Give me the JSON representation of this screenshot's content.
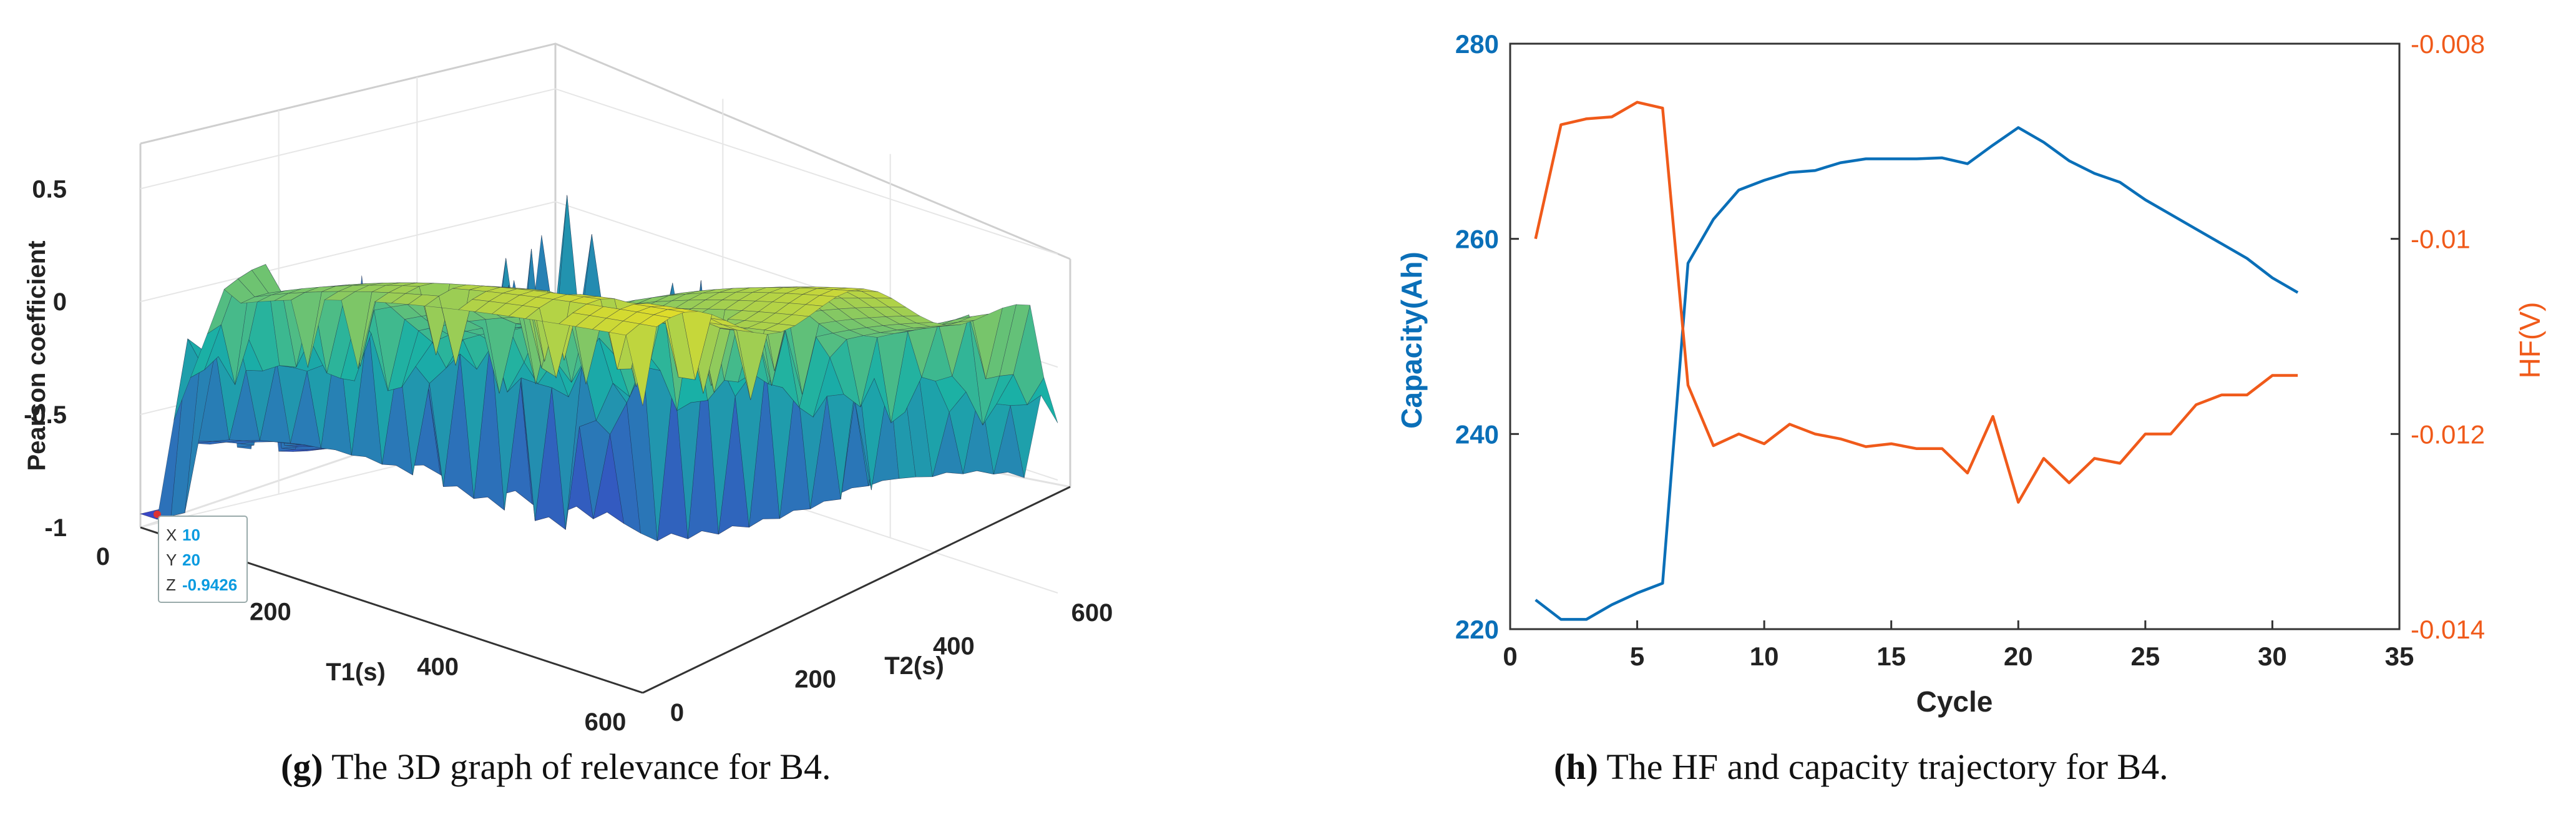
{
  "chart_data": [
    {
      "type": "surface3d",
      "xlabel": "T1(s)",
      "ylabel": "T2(s)",
      "zlabel": "Pearson coefficient",
      "x_ticks": [
        "0",
        "200",
        "400",
        "600"
      ],
      "y_ticks": [
        "0",
        "200",
        "400",
        "600"
      ],
      "z_ticks": [
        "-1",
        "-0.5",
        "0",
        "0.5"
      ],
      "xlim": [
        0,
        600
      ],
      "ylim": [
        0,
        600
      ],
      "zlim": [
        -1,
        0.7
      ],
      "datatip": {
        "x_label": "X",
        "x": "10",
        "y_label": "Y",
        "y": "20",
        "z_label": "Z",
        "z": "-0.9426"
      },
      "colors": {
        "low": "#3b3fc8",
        "mid": "#19b0a6",
        "high": "#f0e020"
      }
    },
    {
      "type": "line",
      "xlabel": "Cycle",
      "ylabel": "Capacity(Ah)",
      "y2label": "HF(V)",
      "xlim": [
        0,
        35
      ],
      "ylim": [
        220,
        280
      ],
      "y2lim": [
        -0.014,
        -0.008
      ],
      "x_ticks": [
        "0",
        "5",
        "10",
        "15",
        "20",
        "25",
        "30",
        "35"
      ],
      "y_ticks": [
        "220",
        "240",
        "260",
        "280"
      ],
      "y2_ticks": [
        "-0.014",
        "-0.012",
        "-0.01",
        "-0.008"
      ],
      "x": [
        1,
        2,
        3,
        4,
        5,
        6,
        7,
        8,
        9,
        10,
        11,
        12,
        13,
        14,
        15,
        16,
        17,
        18,
        19,
        20,
        21,
        22,
        23,
        24,
        25,
        26,
        27,
        28,
        29,
        30,
        31
      ],
      "series": [
        {
          "axis": "left",
          "color": "#0a6fb8",
          "values": [
            223,
            221,
            221,
            222.5,
            223.7,
            224.7,
            257.5,
            262,
            265,
            266,
            266.8,
            267,
            267.8,
            268.2,
            268.2,
            268.2,
            268.3,
            267.7,
            269.6,
            271.4,
            269.9,
            268,
            266.7,
            265.8,
            264,
            262.5,
            261,
            259.5,
            258,
            256,
            254.5
          ]
        },
        {
          "axis": "right",
          "color": "#f05a1a",
          "values": [
            -0.01,
            -0.00883,
            -0.00877,
            -0.00875,
            -0.0086,
            -0.00866,
            -0.0115,
            -0.01212,
            -0.012,
            -0.0121,
            -0.0119,
            -0.012,
            -0.01205,
            -0.01213,
            -0.0121,
            -0.01215,
            -0.01215,
            -0.0124,
            -0.01182,
            -0.0127,
            -0.01225,
            -0.0125,
            -0.01225,
            -0.0123,
            -0.012,
            -0.012,
            -0.0117,
            -0.0116,
            -0.0116,
            -0.0114,
            -0.0114
          ]
        }
      ],
      "colors": {
        "left_axis": "#0a6fb8",
        "right_axis": "#f05a1a"
      }
    }
  ],
  "captions": {
    "g_letter": "(g)",
    "g_text": " The 3D graph of relevance for B4.",
    "h_letter": "(h)",
    "h_text": " The HF and capacity trajectory for B4."
  }
}
